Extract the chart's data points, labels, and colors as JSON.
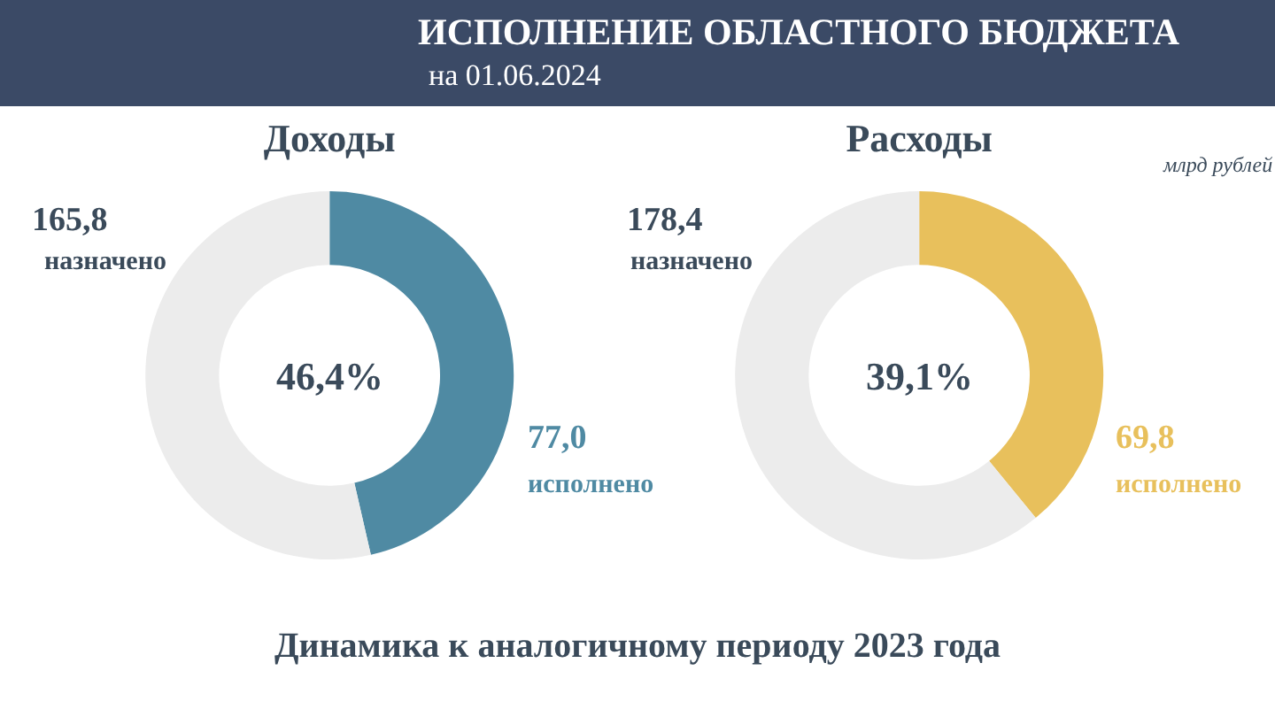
{
  "chart_data": [
    {
      "type": "donut",
      "title": "Доходы",
      "categories": [
        null,
        null
      ],
      "values": [
        46.4,
        53.6
      ],
      "colors": [
        "#4f8aa3",
        "#ececec"
      ],
      "annotations": [
        "ИСПОЛНЕНИЕ ОБЛАСТНОГО БЮДЖЕТА",
        "на 01.06.2024",
        "165,8",
        "назначено",
        "77,0",
        "исполнено",
        "46,4%"
      ]
    },
    {
      "type": "donut",
      "title": "Расходы",
      "categories": [
        null,
        null
      ],
      "values": [
        39.1,
        60.9
      ],
      "colors": [
        "#e8c05c",
        "#ececec"
      ],
      "annotations": [
        "млрд рублей",
        "178,4",
        "назначено",
        "69,8",
        "исполнено",
        "39,1%",
        "Динамика к аналогичному периоду 2023 года"
      ]
    }
  ]
}
